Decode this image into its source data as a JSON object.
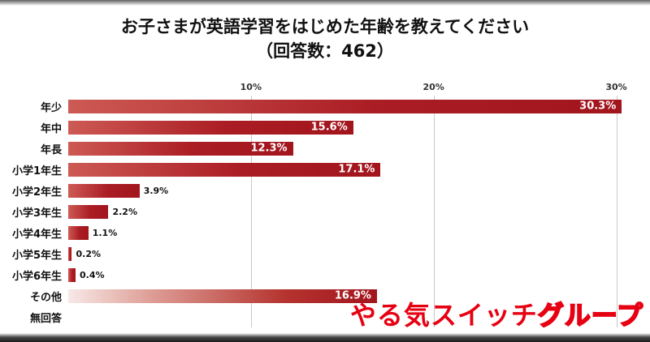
{
  "title": {
    "line1": "お子さまが英語学習をはじめた年齢を教えてください",
    "line2": "（回答数：462）"
  },
  "chart_data": {
    "type": "bar",
    "orientation": "horizontal",
    "title": "お子さまが英語学習をはじめた年齢を教えてください（回答数：462）",
    "categories": [
      "年少",
      "年中",
      "年長",
      "小学1年生",
      "小学2年生",
      "小学3年生",
      "小学4年生",
      "小学5年生",
      "小学6年生",
      "その他",
      "無回答"
    ],
    "values": [
      30.3,
      15.6,
      12.3,
      17.1,
      3.9,
      2.2,
      1.1,
      0.2,
      0.4,
      16.9,
      0
    ],
    "labels": [
      "30.3%",
      "15.6%",
      "12.3%",
      "17.1%",
      "3.9%",
      "2.2%",
      "1.1%",
      "0.2%",
      "0.4%",
      "16.9%",
      ""
    ],
    "ticks": [
      "10%",
      "20%",
      "30%"
    ],
    "tick_values": [
      10,
      20,
      30
    ],
    "xlim": [
      0,
      31.4
    ],
    "inside_label_min": 10,
    "fade_category": "その他",
    "grid": true,
    "bar_color_start": "#cd5a54",
    "bar_color_end": "#a2151d",
    "gridline_color": "#c9c9c9"
  },
  "logo": {
    "main": "やる気スイッチ",
    "outline": "グループ",
    "color": "#e60012"
  }
}
